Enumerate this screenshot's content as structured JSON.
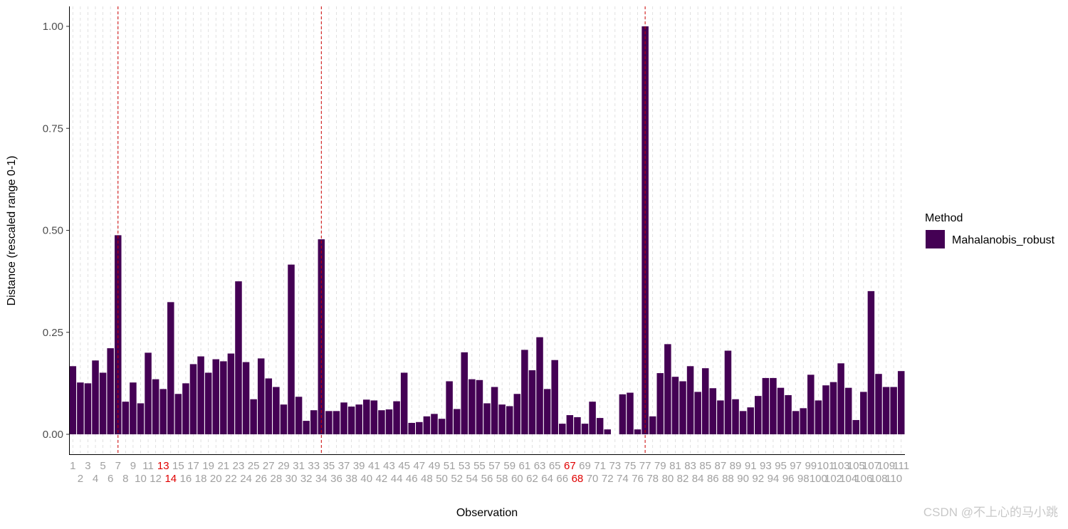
{
  "chart_data": {
    "type": "bar",
    "xlabel": "Observation",
    "ylabel": "Distance (rescaled range 0-1)",
    "ylim": [
      -0.045,
      1.045
    ],
    "y_ticks": [
      0.0,
      0.25,
      0.5,
      0.75,
      1.0
    ],
    "y_tick_labels": [
      "0.00",
      "0.25",
      "0.50",
      "0.75",
      "1.00"
    ],
    "grid": "vertical dashed lines at each observation",
    "categories": [
      1,
      2,
      3,
      4,
      5,
      6,
      7,
      8,
      9,
      10,
      11,
      12,
      13,
      14,
      15,
      16,
      17,
      18,
      19,
      20,
      21,
      22,
      23,
      24,
      25,
      26,
      27,
      28,
      29,
      30,
      31,
      32,
      33,
      34,
      35,
      36,
      37,
      38,
      39,
      40,
      41,
      42,
      43,
      44,
      45,
      46,
      47,
      48,
      49,
      50,
      51,
      52,
      53,
      54,
      55,
      56,
      57,
      58,
      59,
      60,
      61,
      62,
      63,
      64,
      65,
      66,
      67,
      68,
      69,
      70,
      71,
      72,
      73,
      74,
      75,
      76,
      77,
      78,
      79,
      80,
      81,
      82,
      83,
      84,
      85,
      86,
      87,
      88,
      89,
      90,
      91,
      92,
      93,
      94,
      95,
      96,
      97,
      98,
      99,
      100,
      101,
      102,
      103,
      104,
      105,
      106,
      107,
      108,
      109,
      110,
      111
    ],
    "series": [
      {
        "name": "Mahalanobis_robust",
        "color": "#440154",
        "values": [
          0.167,
          0.127,
          0.125,
          0.181,
          0.151,
          0.211,
          0.488,
          0.08,
          0.127,
          0.076,
          0.2,
          0.135,
          0.111,
          0.324,
          0.099,
          0.125,
          0.172,
          0.191,
          0.151,
          0.184,
          0.179,
          0.198,
          0.375,
          0.177,
          0.086,
          0.186,
          0.137,
          0.116,
          0.073,
          0.416,
          0.092,
          0.033,
          0.059,
          0.478,
          0.057,
          0.057,
          0.078,
          0.068,
          0.073,
          0.085,
          0.083,
          0.059,
          0.061,
          0.081,
          0.151,
          0.028,
          0.03,
          0.044,
          0.05,
          0.038,
          0.13,
          0.062,
          0.201,
          0.135,
          0.133,
          0.076,
          0.116,
          0.073,
          0.069,
          0.099,
          0.207,
          0.157,
          0.238,
          0.111,
          0.182,
          0.026,
          0.047,
          0.042,
          0.026,
          0.08,
          0.04,
          0.012,
          0.0,
          0.098,
          0.102,
          0.012,
          1.0,
          0.044,
          0.15,
          0.221,
          0.141,
          0.13,
          0.167,
          0.104,
          0.162,
          0.113,
          0.083,
          0.205,
          0.086,
          0.057,
          0.066,
          0.094,
          0.138,
          0.138,
          0.114,
          0.096,
          0.057,
          0.064,
          0.146,
          0.083,
          0.12,
          0.128,
          0.174,
          0.114,
          0.035,
          0.104,
          0.351,
          0.148,
          0.116,
          0.116,
          0.155
        ]
      }
    ],
    "highlighted_observations": [
      7,
      34,
      77
    ],
    "highlight_line_color": "#cc0000",
    "red_tick_labels": [
      13,
      14,
      67,
      68
    ],
    "tick_label_color": "#a0a0a0",
    "red_label_color": "#e00000",
    "legend": {
      "title": "Method",
      "entries": [
        "Mahalanobis_robust"
      ],
      "placement": "right"
    }
  },
  "watermark": "CSDN @不上心的马小跳"
}
